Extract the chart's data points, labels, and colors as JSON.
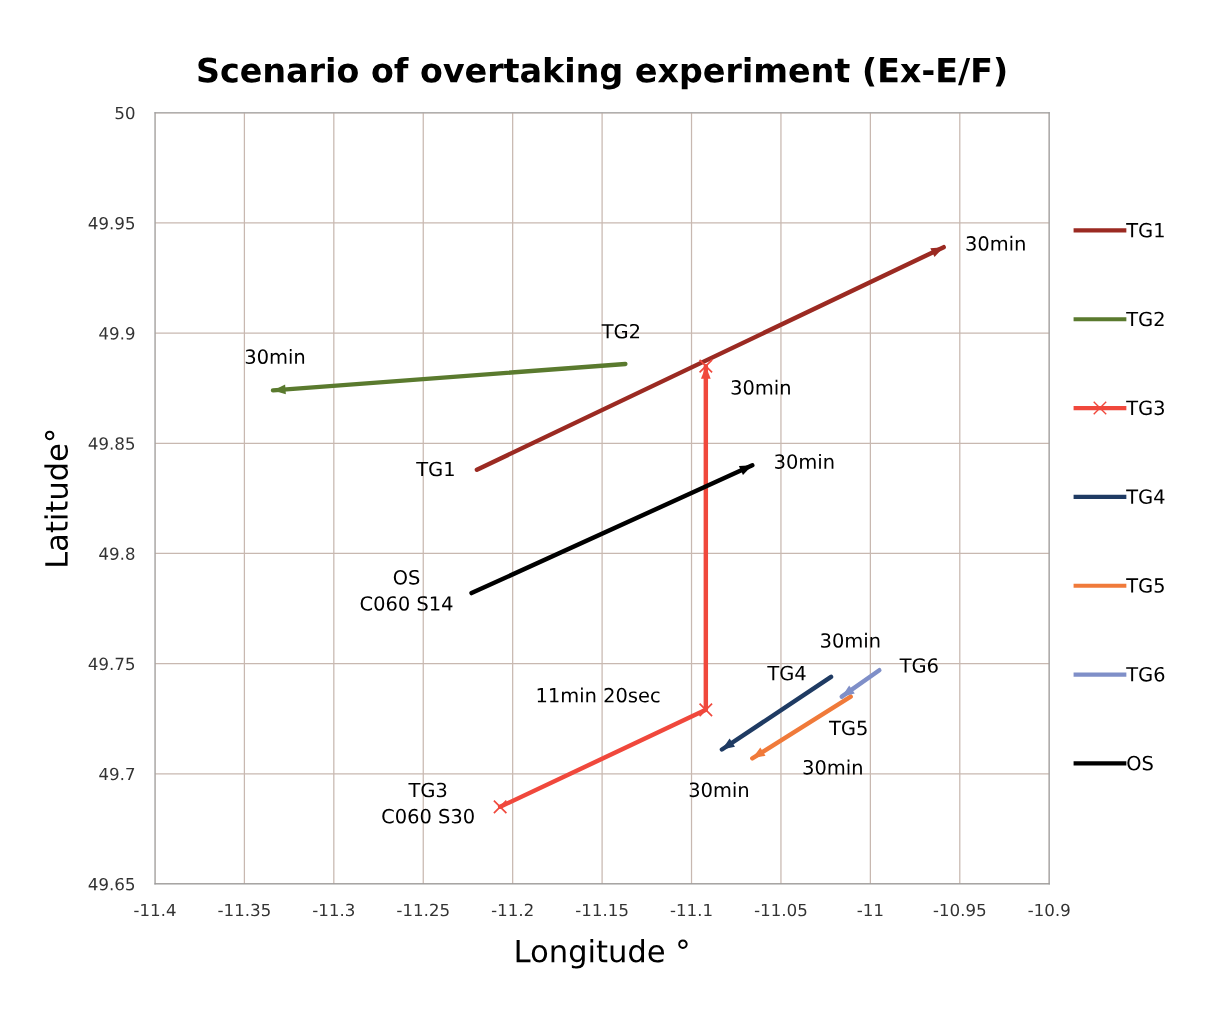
{
  "chart_data": {
    "type": "line",
    "title": "Scenario of overtaking experiment (Ex-E/F)",
    "xlabel": "Longitude °",
    "ylabel": "Latitude°",
    "xlim": [
      -11.4,
      -10.9
    ],
    "xticks": [
      -11.4,
      -11.35,
      -11.3,
      -11.25,
      -11.2,
      -11.15,
      -11.1,
      -11.05,
      -11,
      -10.95,
      -10.9
    ],
    "ylim": [
      49.65,
      50
    ],
    "yticks": [
      49.65,
      49.7,
      49.75,
      49.8,
      49.85,
      49.9,
      49.95,
      50
    ],
    "grid": true,
    "legend": "right",
    "marker": "none",
    "line_style": "solid",
    "series": [
      {
        "name": "TG1",
        "color": "#9b2a22",
        "x": [
          -11.22,
          -10.959
        ],
        "values": [
          49.838,
          49.939
        ]
      },
      {
        "name": "TG2",
        "color": "#5a7a2e",
        "x": [
          -11.137,
          -11.334
        ],
        "values": [
          49.886,
          49.874
        ]
      },
      {
        "name": "TG3",
        "color": "#f0483c",
        "marker": "cross",
        "x": [
          -11.207,
          -11.092,
          -11.092
        ],
        "values": [
          49.685,
          49.729,
          49.885
        ]
      },
      {
        "name": "TG4",
        "color": "#1f3b63",
        "x": [
          -11.022,
          -11.083
        ],
        "values": [
          49.744,
          49.711
        ]
      },
      {
        "name": "TG5",
        "color": "#f07a3a",
        "x": [
          -11.011,
          -11.066
        ],
        "values": [
          49.735,
          49.707
        ]
      },
      {
        "name": "TG6",
        "color": "#7f8fc8",
        "x": [
          -10.995,
          -11.016
        ],
        "values": [
          49.747,
          49.735
        ]
      },
      {
        "name": "OS",
        "color": "#000000",
        "x": [
          -11.223,
          -11.066
        ],
        "values": [
          49.782,
          49.84
        ]
      }
    ],
    "annotations": [
      {
        "text": "30min",
        "x": -10.959,
        "y": 49.939
      },
      {
        "text": "TG2",
        "x": -11.137,
        "y": 49.886
      },
      {
        "text": "30min",
        "x": -11.334,
        "y": 49.874
      },
      {
        "text": "30min",
        "x": -11.092,
        "y": 49.885
      },
      {
        "text": "TG1",
        "x": -11.22,
        "y": 49.838
      },
      {
        "text": "30min",
        "x": -11.066,
        "y": 49.84
      },
      {
        "text": "OS\nC060 S14",
        "x": -11.223,
        "y": 49.782
      },
      {
        "text": "30min",
        "x": -10.995,
        "y": 49.747
      },
      {
        "text": "TG4",
        "x": -11.022,
        "y": 49.744
      },
      {
        "text": "TG6",
        "x": -10.995,
        "y": 49.747
      },
      "11min 20sec",
      {
        "text": "TG5",
        "x": -11.011,
        "y": 49.735
      },
      "30min",
      {
        "text": "30min",
        "x": -11.083,
        "y": 49.711
      },
      {
        "text": "TG3\nC060 S30",
        "x": -11.207,
        "y": 49.685
      }
    ]
  }
}
